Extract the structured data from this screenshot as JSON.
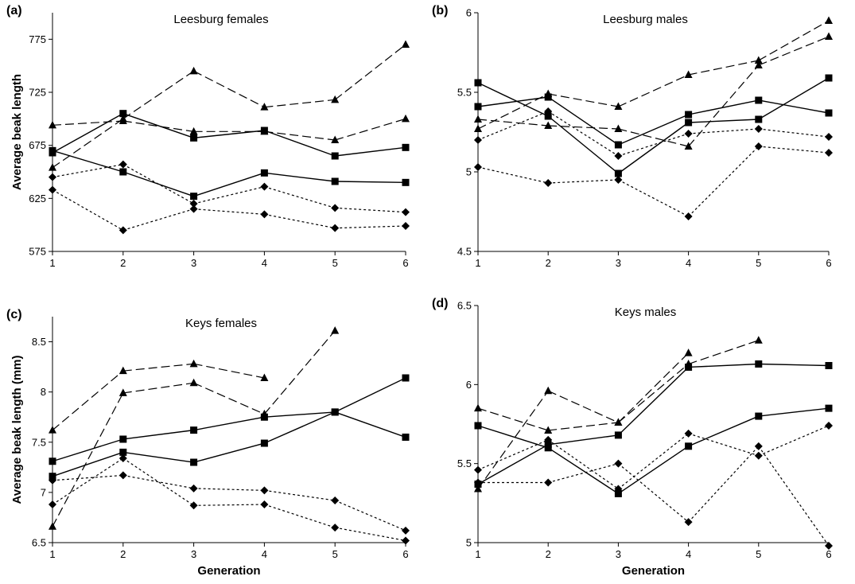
{
  "chart_data": [
    {
      "type": "line",
      "panel_label": "(a)",
      "title": "Leesburg females",
      "xlabel": "",
      "ylabel": "Average beak length",
      "x": [
        1,
        2,
        3,
        4,
        5,
        6
      ],
      "xticks": [
        "1",
        "2",
        "3",
        "4",
        "5",
        "6"
      ],
      "ylim": [
        575,
        800
      ],
      "yticks": [
        "575",
        "625",
        "675",
        "725",
        "775"
      ],
      "series": [
        {
          "marker": "triangle",
          "dash": "long",
          "values": [
            694,
            698,
            688,
            688,
            680,
            700
          ]
        },
        {
          "marker": "triangle",
          "dash": "long",
          "values": [
            654,
            700,
            745,
            711,
            718,
            770
          ]
        },
        {
          "marker": "square",
          "dash": "solid",
          "values": [
            668,
            705,
            682,
            689,
            665,
            673
          ]
        },
        {
          "marker": "square",
          "dash": "solid",
          "values": [
            670,
            650,
            627,
            649,
            641,
            640
          ]
        },
        {
          "marker": "diamond",
          "dash": "dot",
          "values": [
            645,
            657,
            620,
            636,
            616,
            612
          ]
        },
        {
          "marker": "diamond",
          "dash": "dot",
          "values": [
            633,
            595,
            615,
            610,
            597,
            599
          ]
        }
      ]
    },
    {
      "type": "line",
      "panel_label": "(b)",
      "title": "Leesburg males",
      "xlabel": "",
      "ylabel": "",
      "x": [
        1,
        2,
        3,
        4,
        5,
        6
      ],
      "xticks": [
        "1",
        "2",
        "3",
        "4",
        "5",
        "6"
      ],
      "ylim": [
        4.5,
        6
      ],
      "yticks": [
        "4.5",
        "5",
        "5.5",
        "6"
      ],
      "series": [
        {
          "marker": "triangle",
          "dash": "long",
          "values": [
            5.33,
            5.29,
            5.27,
            5.16,
            5.67,
            5.85
          ]
        },
        {
          "marker": "triangle",
          "dash": "long",
          "values": [
            5.27,
            5.49,
            5.41,
            5.61,
            5.7,
            5.95
          ]
        },
        {
          "marker": "square",
          "dash": "solid",
          "values": [
            5.41,
            5.47,
            5.17,
            5.36,
            5.45,
            5.37
          ]
        },
        {
          "marker": "square",
          "dash": "solid",
          "values": [
            5.56,
            5.35,
            4.99,
            5.31,
            5.33,
            5.59
          ]
        },
        {
          "marker": "diamond",
          "dash": "dot",
          "values": [
            5.2,
            5.38,
            5.1,
            5.24,
            5.27,
            5.22
          ]
        },
        {
          "marker": "diamond",
          "dash": "dot",
          "values": [
            5.03,
            4.93,
            4.95,
            4.72,
            5.16,
            5.12
          ]
        }
      ]
    },
    {
      "type": "line",
      "panel_label": "(c)",
      "title": "Keys females",
      "xlabel": "Generation",
      "ylabel": "Average beak length (mm)",
      "x": [
        1,
        2,
        3,
        4,
        5,
        6
      ],
      "xticks": [
        "1",
        "2",
        "3",
        "4",
        "5",
        "6"
      ],
      "ylim": [
        6.5,
        8.75
      ],
      "yticks": [
        "6.5",
        "7",
        "7.5",
        "8",
        "8.5"
      ],
      "series": [
        {
          "marker": "triangle",
          "dash": "long",
          "values": [
            7.62,
            8.21,
            8.28,
            8.14,
            null,
            null
          ]
        },
        {
          "marker": "triangle",
          "dash": "long",
          "values": [
            6.66,
            7.99,
            8.09,
            7.78,
            8.61,
            null
          ]
        },
        {
          "marker": "square",
          "dash": "solid",
          "values": [
            7.31,
            7.53,
            7.62,
            7.75,
            7.8,
            8.14
          ]
        },
        {
          "marker": "square",
          "dash": "solid",
          "values": [
            7.16,
            7.4,
            7.3,
            7.49,
            7.8,
            7.55
          ]
        },
        {
          "marker": "diamond",
          "dash": "dot",
          "values": [
            7.12,
            7.17,
            7.04,
            7.02,
            6.92,
            6.62
          ]
        },
        {
          "marker": "diamond",
          "dash": "dot",
          "values": [
            6.88,
            7.34,
            6.87,
            6.88,
            6.65,
            6.52
          ]
        }
      ]
    },
    {
      "type": "line",
      "panel_label": "(d)",
      "title": "Keys males",
      "xlabel": "Generation",
      "ylabel": "",
      "x": [
        1,
        2,
        3,
        4,
        5,
        6
      ],
      "xticks": [
        "1",
        "2",
        "3",
        "4",
        "5",
        "6"
      ],
      "ylim": [
        5,
        6.5
      ],
      "yticks": [
        "5",
        "5.5",
        "6",
        "6.5"
      ],
      "series": [
        {
          "marker": "triangle",
          "dash": "long",
          "values": [
            5.85,
            5.71,
            5.76,
            6.13,
            6.28,
            null
          ]
        },
        {
          "marker": "triangle",
          "dash": "long",
          "values": [
            5.34,
            5.96,
            5.76,
            6.2,
            null,
            null
          ]
        },
        {
          "marker": "square",
          "dash": "solid",
          "values": [
            5.37,
            5.62,
            5.68,
            6.11,
            6.13,
            6.12
          ]
        },
        {
          "marker": "square",
          "dash": "solid",
          "values": [
            5.74,
            5.6,
            5.31,
            5.61,
            5.8,
            5.85
          ]
        },
        {
          "marker": "diamond",
          "dash": "dot",
          "values": [
            5.46,
            5.65,
            5.34,
            5.69,
            5.55,
            5.74
          ]
        },
        {
          "marker": "diamond",
          "dash": "dot",
          "values": [
            5.38,
            5.38,
            5.5,
            5.13,
            5.61,
            4.98
          ]
        }
      ]
    }
  ]
}
